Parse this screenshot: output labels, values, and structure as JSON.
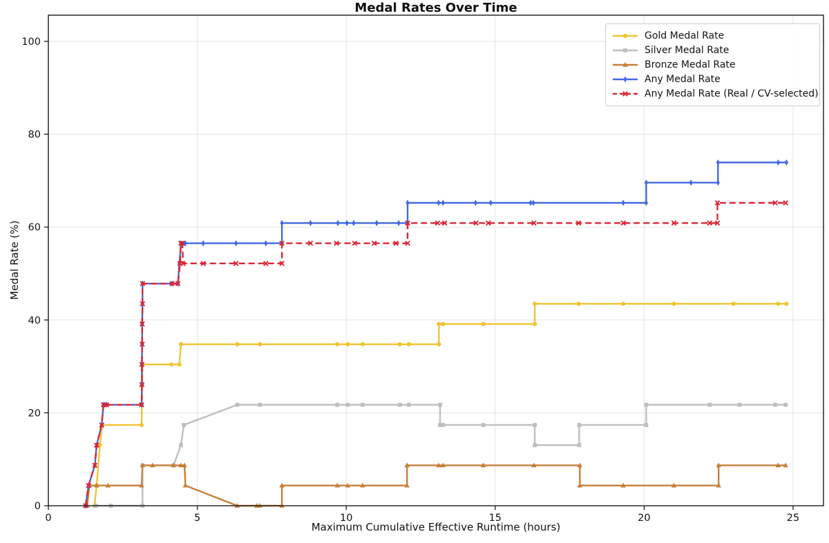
{
  "chart_data": {
    "type": "line",
    "title": "Medal Rates Over Time",
    "xlabel": "Maximum Cumulative Effective Runtime (hours)",
    "ylabel": "Medal Rate (%)",
    "xlim": [
      0,
      26
    ],
    "ylim": [
      0,
      105.6
    ],
    "xticks": [
      0,
      5,
      10,
      15,
      20,
      25
    ],
    "yticks": [
      0,
      20,
      40,
      60,
      80,
      100
    ],
    "grid": true,
    "legend_position": "upper right",
    "series": [
      {
        "name": "Gold Medal Rate",
        "color": "#F0C330",
        "marker": "circle",
        "dash": null,
        "points": [
          [
            1.55,
            0
          ],
          [
            1.62,
            4.35
          ],
          [
            1.73,
            13.04
          ],
          [
            1.81,
            17.39
          ],
          [
            3.13,
            17.39
          ],
          [
            3.14,
            21.74
          ],
          [
            3.15,
            26.09
          ],
          [
            3.16,
            30.43
          ],
          [
            4.13,
            30.43
          ],
          [
            4.4,
            30.43
          ],
          [
            4.45,
            34.78
          ],
          [
            6.34,
            34.78
          ],
          [
            7.1,
            34.78
          ],
          [
            9.7,
            34.78
          ],
          [
            10.05,
            34.78
          ],
          [
            10.55,
            34.78
          ],
          [
            11.8,
            34.78
          ],
          [
            12.1,
            34.78
          ],
          [
            13.11,
            34.78
          ],
          [
            13.11,
            39.13
          ],
          [
            13.25,
            39.13
          ],
          [
            14.6,
            39.13
          ],
          [
            16.33,
            39.13
          ],
          [
            16.33,
            43.48
          ],
          [
            17.8,
            43.48
          ],
          [
            19.3,
            43.48
          ],
          [
            21.0,
            43.48
          ],
          [
            23.0,
            43.48
          ],
          [
            24.5,
            43.48
          ],
          [
            24.78,
            43.48
          ]
        ]
      },
      {
        "name": "Silver Medal Rate",
        "color": "#BEBEBE",
        "marker": "square",
        "dash": null,
        "points": [
          [
            1.6,
            0
          ],
          [
            2.1,
            0
          ],
          [
            3.16,
            0
          ],
          [
            3.16,
            8.7
          ],
          [
            4.2,
            8.7
          ],
          [
            4.45,
            13.04
          ],
          [
            4.55,
            17.39
          ],
          [
            6.34,
            21.74
          ],
          [
            7.1,
            21.74
          ],
          [
            9.7,
            21.74
          ],
          [
            10.05,
            21.74
          ],
          [
            10.55,
            21.74
          ],
          [
            11.8,
            21.74
          ],
          [
            12.1,
            21.74
          ],
          [
            13.15,
            21.74
          ],
          [
            13.15,
            17.39
          ],
          [
            13.25,
            17.39
          ],
          [
            14.6,
            17.39
          ],
          [
            16.33,
            17.39
          ],
          [
            16.33,
            13.04
          ],
          [
            17.82,
            13.04
          ],
          [
            17.82,
            17.39
          ],
          [
            20.07,
            17.39
          ],
          [
            20.07,
            21.74
          ],
          [
            22.2,
            21.74
          ],
          [
            23.2,
            21.74
          ],
          [
            24.4,
            21.74
          ],
          [
            24.75,
            21.74
          ]
        ]
      },
      {
        "name": "Bronze Medal Rate",
        "color": "#C67F38",
        "marker": "triangle",
        "dash": null,
        "points": [
          [
            1.3,
            0
          ],
          [
            1.38,
            4.35
          ],
          [
            1.62,
            4.35
          ],
          [
            2.0,
            4.35
          ],
          [
            3.13,
            4.35
          ],
          [
            3.16,
            8.7
          ],
          [
            3.5,
            8.7
          ],
          [
            4.2,
            8.7
          ],
          [
            4.45,
            8.7
          ],
          [
            4.57,
            8.7
          ],
          [
            4.6,
            4.35
          ],
          [
            6.34,
            0
          ],
          [
            7.0,
            0
          ],
          [
            7.1,
            0
          ],
          [
            7.84,
            0
          ],
          [
            7.84,
            4.35
          ],
          [
            9.7,
            4.35
          ],
          [
            10.05,
            4.35
          ],
          [
            10.55,
            4.35
          ],
          [
            12.04,
            4.35
          ],
          [
            12.04,
            8.7
          ],
          [
            13.1,
            8.7
          ],
          [
            13.25,
            8.7
          ],
          [
            14.6,
            8.7
          ],
          [
            16.3,
            8.7
          ],
          [
            17.84,
            8.7
          ],
          [
            17.84,
            4.35
          ],
          [
            19.3,
            4.35
          ],
          [
            21.0,
            4.35
          ],
          [
            22.5,
            4.35
          ],
          [
            22.5,
            8.7
          ],
          [
            24.5,
            8.7
          ],
          [
            24.75,
            8.7
          ]
        ]
      },
      {
        "name": "Any Medal Rate",
        "color": "#4169E1",
        "marker": "diamond",
        "dash": null,
        "points": [
          [
            1.25,
            0
          ],
          [
            1.35,
            4.35
          ],
          [
            1.56,
            8.7
          ],
          [
            1.62,
            13.04
          ],
          [
            1.79,
            17.39
          ],
          [
            1.85,
            21.74
          ],
          [
            1.95,
            21.74
          ],
          [
            3.13,
            21.74
          ],
          [
            3.14,
            26.09
          ],
          [
            3.14,
            30.43
          ],
          [
            3.15,
            34.78
          ],
          [
            3.15,
            39.13
          ],
          [
            3.16,
            43.48
          ],
          [
            3.16,
            47.83
          ],
          [
            4.15,
            47.83
          ],
          [
            4.35,
            47.83
          ],
          [
            4.4,
            52.17
          ],
          [
            4.45,
            56.52
          ],
          [
            4.6,
            56.52
          ],
          [
            5.2,
            56.52
          ],
          [
            6.3,
            56.52
          ],
          [
            7.3,
            56.52
          ],
          [
            7.84,
            56.52
          ],
          [
            7.84,
            60.87
          ],
          [
            8.8,
            60.87
          ],
          [
            9.72,
            60.87
          ],
          [
            10.02,
            60.87
          ],
          [
            10.25,
            60.87
          ],
          [
            11.02,
            60.87
          ],
          [
            11.76,
            60.87
          ],
          [
            12.06,
            60.87
          ],
          [
            12.06,
            65.22
          ],
          [
            13.1,
            65.22
          ],
          [
            13.25,
            65.22
          ],
          [
            14.34,
            65.22
          ],
          [
            14.85,
            65.22
          ],
          [
            16.19,
            65.22
          ],
          [
            16.28,
            65.22
          ],
          [
            19.3,
            65.22
          ],
          [
            20.07,
            65.22
          ],
          [
            20.07,
            69.57
          ],
          [
            21.57,
            69.57
          ],
          [
            22.48,
            69.57
          ],
          [
            22.48,
            73.91
          ],
          [
            24.5,
            73.91
          ],
          [
            24.78,
            73.91
          ]
        ]
      },
      {
        "name": "Any Medal Rate (Real / CV-selected)",
        "color": "#DC2434",
        "marker": "x",
        "dash": [
          9,
          5
        ],
        "points": [
          [
            1.25,
            0
          ],
          [
            1.35,
            4.35
          ],
          [
            1.56,
            8.7
          ],
          [
            1.62,
            13.04
          ],
          [
            1.79,
            17.39
          ],
          [
            1.85,
            21.74
          ],
          [
            1.95,
            21.74
          ],
          [
            3.13,
            21.74
          ],
          [
            3.14,
            26.09
          ],
          [
            3.14,
            30.43
          ],
          [
            3.15,
            34.78
          ],
          [
            3.15,
            39.13
          ],
          [
            3.16,
            43.48
          ],
          [
            3.16,
            47.83
          ],
          [
            4.15,
            47.83
          ],
          [
            4.35,
            47.83
          ],
          [
            4.42,
            52.17
          ],
          [
            4.45,
            56.52
          ],
          [
            4.5,
            56.52
          ],
          [
            4.52,
            52.17
          ],
          [
            5.2,
            52.17
          ],
          [
            6.3,
            52.17
          ],
          [
            7.3,
            52.17
          ],
          [
            7.84,
            52.17
          ],
          [
            7.84,
            56.52
          ],
          [
            8.8,
            56.52
          ],
          [
            9.67,
            56.52
          ],
          [
            10.28,
            56.52
          ],
          [
            10.94,
            56.52
          ],
          [
            11.67,
            56.52
          ],
          [
            12.06,
            56.52
          ],
          [
            12.06,
            60.87
          ],
          [
            13.07,
            60.87
          ],
          [
            13.3,
            60.87
          ],
          [
            14.36,
            60.87
          ],
          [
            14.77,
            60.87
          ],
          [
            16.3,
            60.87
          ],
          [
            17.8,
            60.87
          ],
          [
            19.3,
            60.87
          ],
          [
            21.0,
            60.87
          ],
          [
            22.2,
            60.87
          ],
          [
            22.46,
            60.87
          ],
          [
            22.46,
            65.22
          ],
          [
            24.4,
            65.22
          ],
          [
            24.75,
            65.22
          ]
        ]
      }
    ]
  }
}
